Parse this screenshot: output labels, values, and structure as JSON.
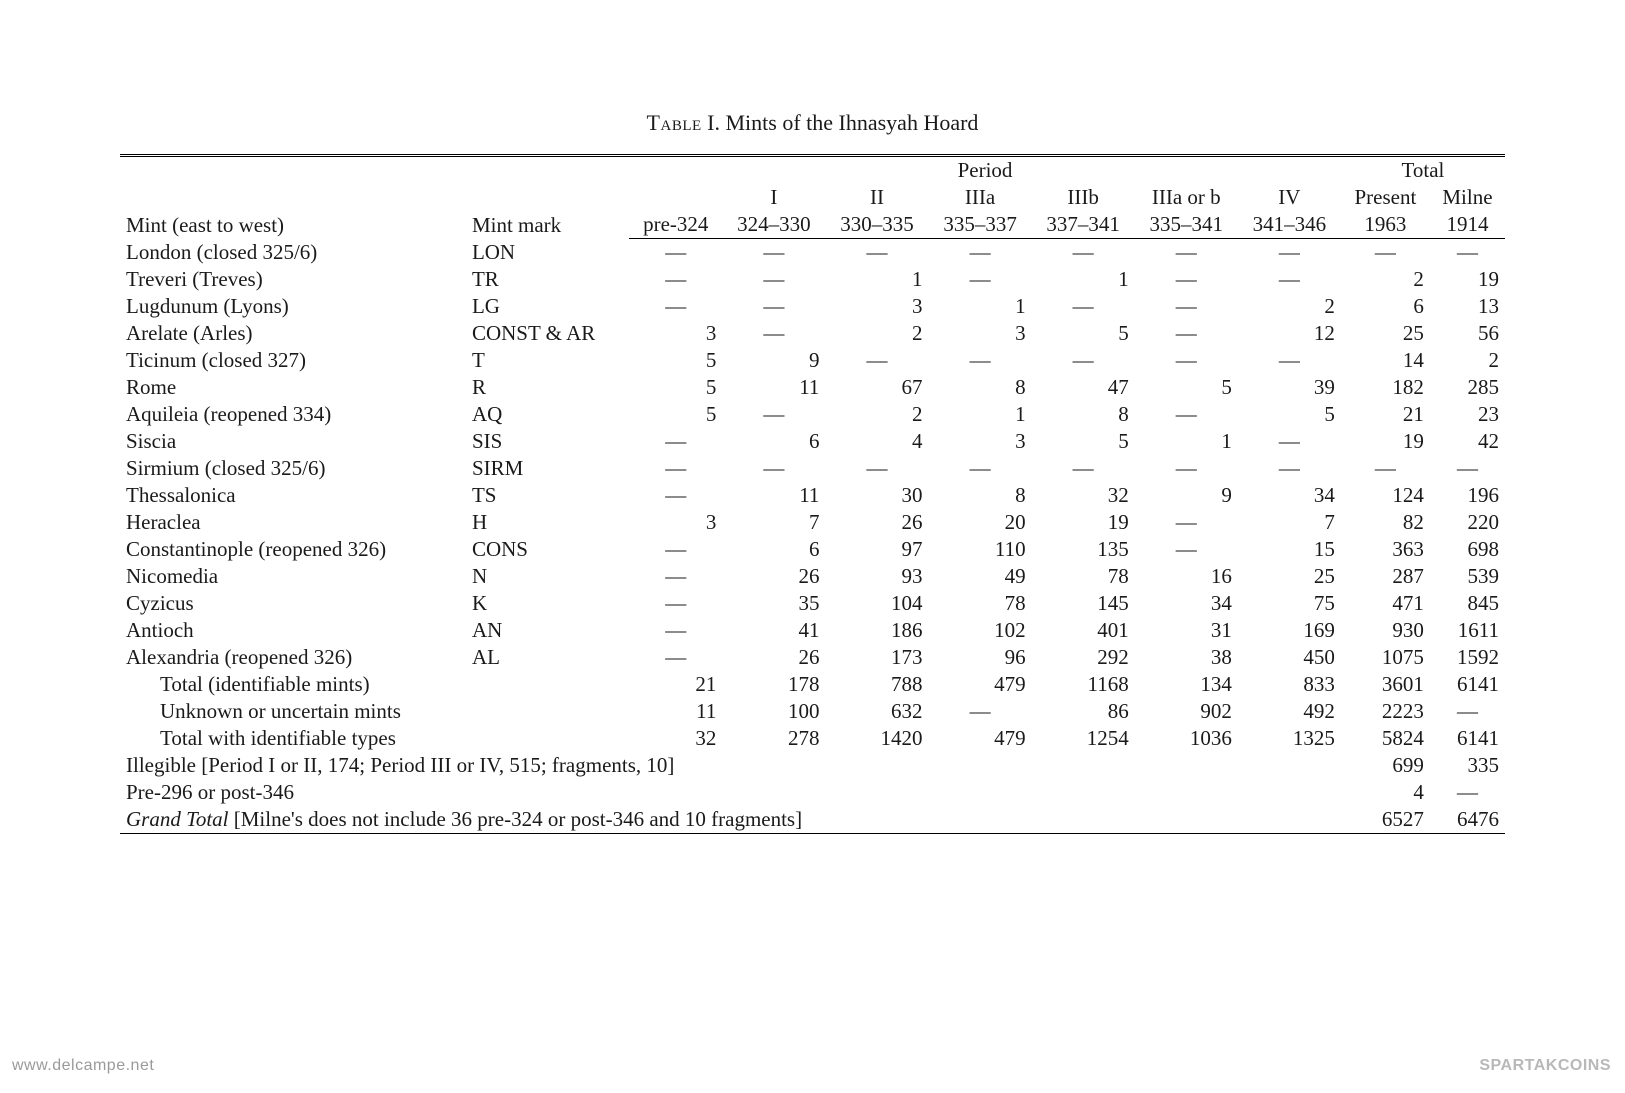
{
  "caption_prefix": "Table",
  "caption_rest": " I. Mints of the Ihnasyah Hoard",
  "headers": {
    "mint": "Mint (east to west)",
    "mark": "Mint mark",
    "period": "Period",
    "total": "Total",
    "cols": [
      {
        "top": "",
        "bot": "pre-324"
      },
      {
        "top": "I",
        "bot": "324–330"
      },
      {
        "top": "II",
        "bot": "330–335"
      },
      {
        "top": "IIIa",
        "bot": "335–337"
      },
      {
        "top": "IIIb",
        "bot": "337–341"
      },
      {
        "top": "IIIa or b",
        "bot": "335–341"
      },
      {
        "top": "IV",
        "bot": "341–346"
      }
    ],
    "total_cols": [
      {
        "top": "Present",
        "bot": "1963"
      },
      {
        "top": "Milne",
        "bot": "1914"
      }
    ]
  },
  "rows": [
    {
      "mint": "London (closed 325/6)",
      "mark": "LON",
      "v": [
        "—",
        "—",
        "—",
        "—",
        "—",
        "—",
        "—",
        "—",
        "—"
      ]
    },
    {
      "mint": "Treveri (Treves)",
      "mark": "TR",
      "v": [
        "—",
        "—",
        "1",
        "—",
        "1",
        "—",
        "—",
        "2",
        "19"
      ]
    },
    {
      "mint": "Lugdunum (Lyons)",
      "mark": "LG",
      "v": [
        "—",
        "—",
        "3",
        "1",
        "—",
        "—",
        "2",
        "6",
        "13"
      ]
    },
    {
      "mint": "Arelate (Arles)",
      "mark": "CONST & AR",
      "v": [
        "3",
        "—",
        "2",
        "3",
        "5",
        "—",
        "12",
        "25",
        "56"
      ]
    },
    {
      "mint": "Ticinum (closed 327)",
      "mark": "T",
      "v": [
        "5",
        "9",
        "—",
        "—",
        "—",
        "—",
        "—",
        "14",
        "2"
      ]
    },
    {
      "mint": "Rome",
      "mark": "R",
      "v": [
        "5",
        "11",
        "67",
        "8",
        "47",
        "5",
        "39",
        "182",
        "285"
      ]
    },
    {
      "mint": "Aquileia (reopened 334)",
      "mark": "AQ",
      "v": [
        "5",
        "—",
        "2",
        "1",
        "8",
        "—",
        "5",
        "21",
        "23"
      ]
    },
    {
      "mint": "Siscia",
      "mark": "SIS",
      "v": [
        "—",
        "6",
        "4",
        "3",
        "5",
        "1",
        "—",
        "19",
        "42"
      ]
    },
    {
      "mint": "Sirmium (closed 325/6)",
      "mark": "SIRM",
      "v": [
        "—",
        "—",
        "—",
        "—",
        "—",
        "—",
        "—",
        "—",
        "—"
      ]
    },
    {
      "mint": "Thessalonica",
      "mark": "TS",
      "v": [
        "—",
        "11",
        "30",
        "8",
        "32",
        "9",
        "34",
        "124",
        "196"
      ]
    },
    {
      "mint": "Heraclea",
      "mark": "H",
      "v": [
        "3",
        "7",
        "26",
        "20",
        "19",
        "—",
        "7",
        "82",
        "220"
      ]
    },
    {
      "mint": "Constantinople (reopened 326)",
      "mark": "CONS",
      "v": [
        "—",
        "6",
        "97",
        "110",
        "135",
        "—",
        "15",
        "363",
        "698"
      ]
    },
    {
      "mint": "Nicomedia",
      "mark": "N",
      "v": [
        "—",
        "26",
        "93",
        "49",
        "78",
        "16",
        "25",
        "287",
        "539"
      ]
    },
    {
      "mint": "Cyzicus",
      "mark": "K",
      "v": [
        "—",
        "35",
        "104",
        "78",
        "145",
        "34",
        "75",
        "471",
        "845"
      ]
    },
    {
      "mint": "Antioch",
      "mark": "AN",
      "v": [
        "—",
        "41",
        "186",
        "102",
        "401",
        "31",
        "169",
        "930",
        "1611"
      ]
    },
    {
      "mint": "Alexandria (reopened 326)",
      "mark": "AL",
      "v": [
        "—",
        "26",
        "173",
        "96",
        "292",
        "38",
        "450",
        "1075",
        "1592"
      ]
    }
  ],
  "subtotals": [
    {
      "label": "Total (identifiable mints)",
      "v": [
        "21",
        "178",
        "788",
        "479",
        "1168",
        "134",
        "833",
        "3601",
        "6141"
      ]
    },
    {
      "label": "Unknown or uncertain mints",
      "v": [
        "11",
        "100",
        "632",
        "—",
        "86",
        "902",
        "492",
        "2223",
        "—"
      ]
    },
    {
      "label": "Total with identifiable types",
      "v": [
        "32",
        "278",
        "1420",
        "479",
        "1254",
        "1036",
        "1325",
        "5824",
        "6141"
      ]
    }
  ],
  "illegible": {
    "label": "Illegible [Period I or II, 174; Period III or IV, 515; fragments, 10]",
    "present": "699",
    "milne": "335"
  },
  "pre296": {
    "label": "Pre-296 or post-346",
    "present": "4",
    "milne": "—"
  },
  "grand": {
    "label_italic": "Grand Total",
    "label_rest": " [Milne's does not include 36 pre-324 or post-346 and 10 fragments]",
    "present": "6527",
    "milne": "6476"
  },
  "watermarks": {
    "left": "www.delcampe.net",
    "right": "SPARTAKCOINS"
  }
}
